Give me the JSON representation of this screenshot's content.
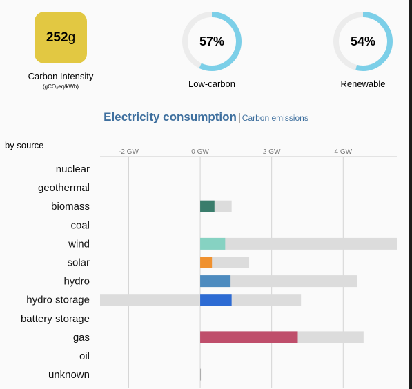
{
  "summary": {
    "carbon_intensity": {
      "value": "252",
      "unit": "g",
      "label": "Carbon Intensity",
      "sublabel": "(gCO₂eq/kWh)",
      "color": "#e2c842"
    },
    "low_carbon": {
      "percent_text": "57%",
      "percent": 57,
      "label": "Low-carbon",
      "color": "#7ccfe8"
    },
    "renewable": {
      "percent_text": "54%",
      "percent": 54,
      "label": "Renewable",
      "color": "#7ccfe8"
    }
  },
  "tabs": {
    "active": "Electricity consumption",
    "separator": "|",
    "other": "Carbon emissions"
  },
  "by_source_label": "by source",
  "chart_data": {
    "type": "bar",
    "orientation": "horizontal",
    "x_unit": "GW",
    "xlim": [
      -2.8,
      5.5
    ],
    "ticks": [
      {
        "value": -2,
        "label": "-2 GW"
      },
      {
        "value": 0,
        "label": "0 GW"
      },
      {
        "value": 2,
        "label": "2 GW"
      },
      {
        "value": 4,
        "label": "4 GW"
      }
    ],
    "grid": true,
    "categories": [
      "nuclear",
      "geothermal",
      "biomass",
      "coal",
      "wind",
      "solar",
      "hydro",
      "hydro storage",
      "battery storage",
      "gas",
      "oil",
      "unknown"
    ],
    "series": [
      {
        "role": "production",
        "values": [
          0,
          0,
          0.4,
          0,
          0.7,
          0.33,
          0.85,
          0.88,
          0,
          2.73,
          0,
          0.01
        ],
        "colors": [
          "#aeb800",
          "#ff3333",
          "#3a7d6c",
          "#ac8c35",
          "#86d2c2",
          "#f0912f",
          "#4d8bbf",
          "#2d6bd3",
          "#b390bd",
          "#bf4e6b",
          "#867d66",
          "#aaaaaa"
        ]
      },
      {
        "role": "capacity",
        "min": [
          0,
          0,
          0,
          0,
          0,
          0,
          0,
          -2.8,
          0,
          0,
          0,
          0
        ],
        "max": [
          0,
          0,
          0.88,
          0,
          5.5,
          1.37,
          4.38,
          2.82,
          0,
          4.57,
          0,
          0.01
        ],
        "color": "#dcdcdc"
      }
    ]
  }
}
